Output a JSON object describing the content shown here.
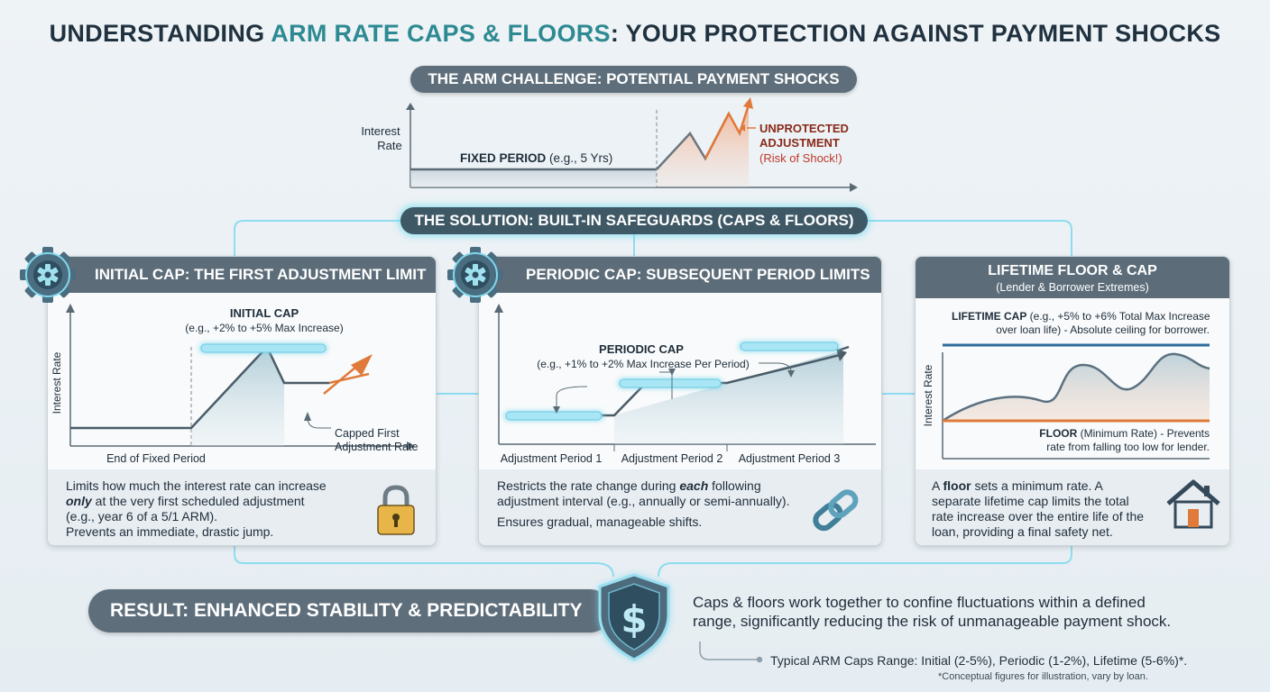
{
  "title": {
    "part1": "UNDERSTANDING ",
    "accent": "ARM RATE CAPS & FLOORS",
    "part2": ": YOUR PROTECTION AGAINST PAYMENT SHOCKS"
  },
  "challenge": {
    "label": "THE ARM CHALLENGE: POTENTIAL PAYMENT SHOCKS",
    "axis_label_line1": "Interest",
    "axis_label_line2": "Rate",
    "fixed_bold": "FIXED PERIOD",
    "fixed_rest": " (e.g., 5 Yrs)",
    "unprotected_line1": "UNPROTECTED",
    "unprotected_line2": "ADJUSTMENT",
    "unprotected_line3": "(Risk of Shock!)"
  },
  "solution": {
    "label": "THE SOLUTION: BUILT-IN SAFEGUARDS (CAPS & FLOORS)"
  },
  "panels": {
    "initial": {
      "title": "INITIAL CAP: THE FIRST ADJUSTMENT LIMIT",
      "cap_label": "INITIAL CAP",
      "cap_example": "(e.g., +2% to +5% Max Increase)",
      "y_axis": "Interest Rate",
      "x_label": "End of Fixed Period",
      "capped_line1": "Capped First",
      "capped_line2": "Adjustment Rate",
      "desc_a": "Limits how much the interest rate can increase",
      "desc_b_em": "only",
      "desc_b_rest": " at the very first scheduled adjustment",
      "desc_c": "(e.g., year 6 of a 5/1 ARM).",
      "desc_d": "Prevents an immediate, drastic jump.",
      "icon": "lock-icon"
    },
    "periodic": {
      "title": "PERIODIC CAP: SUBSEQUENT PERIOD LIMITS",
      "cap_label": "PERIODIC CAP",
      "cap_example": "(e.g., +1% to +2% Max Increase Per Period)",
      "period1": "Adjustment Period 1",
      "period2": "Adjustment Period 2",
      "period3": "Adjustment Period 3",
      "desc_a_pre": "Restricts the rate change during ",
      "desc_a_em": "each",
      "desc_a_post": " following",
      "desc_b": "adjustment interval (e.g., annually or semi-annually).",
      "desc_c": "Ensures gradual, manageable shifts.",
      "icon": "chain-link-icon"
    },
    "lifetime": {
      "title": "LIFETIME FLOOR & CAP",
      "subtitle": "(Lender & Borrower Extremes)",
      "cap_bold": "LIFETIME CAP",
      "cap_rest": " (e.g., +5% to +6% Total Max Increase",
      "cap_line2": "over loan life) - Absolute ceiling for borrower.",
      "y_axis": "Interest Rate",
      "floor_bold": "FLOOR",
      "floor_rest": " (Minimum Rate) - Prevents",
      "floor_line2": "rate from falling too low for lender.",
      "desc_a_pre": "A ",
      "desc_a_bold": "floor",
      "desc_a_post": " sets a minimum rate. A",
      "desc_b": "separate lifetime cap limits the total",
      "desc_c": "rate increase over the entire life of the",
      "desc_d": "loan, providing a final safety net.",
      "icon": "house-icon"
    }
  },
  "result": {
    "label": "RESULT: ENHANCED STABILITY & PREDICTABILITY",
    "text_line1": "Caps & floors work together to confine fluctuations within a defined",
    "text_line2": "range, significantly reducing the risk of unmanageable payment shock.",
    "typical": "Typical ARM Caps Range: Initial (2-5%), Periodic (1-2%), Lifetime (5-6%)*.",
    "footnote": "*Conceptual figures for illustration, vary by loan.",
    "icon": "shield-dollar-icon"
  },
  "colors": {
    "accent_teal": "#2e8a92",
    "shock_orange": "#e07a3a",
    "cap_blue": "#2f6c9c",
    "floor_orange": "#e07a3a",
    "glow": "#7fd8ee"
  }
}
